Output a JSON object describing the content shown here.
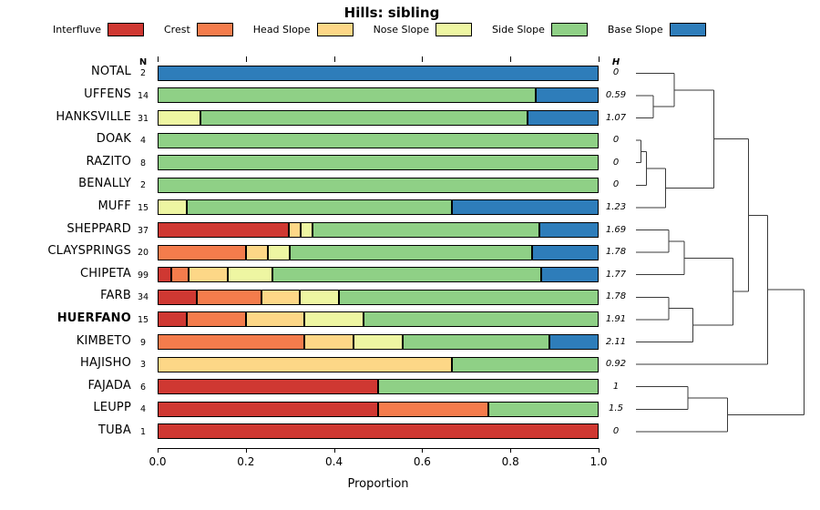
{
  "figure": {
    "n_header": "N",
    "h_header": "H"
  },
  "chart_data": {
    "type": "bar",
    "stacked": true,
    "orientation": "horizontal",
    "title": "Hills: sibling",
    "xlabel": "Proportion",
    "xlim": [
      0,
      1
    ],
    "xticks": [
      "0.0",
      "0.2",
      "0.4",
      "0.6",
      "0.8",
      "1.0"
    ],
    "grid": false,
    "legend_position": "top",
    "categories": [
      "Interfluve",
      "Crest",
      "Head Slope",
      "Nose Slope",
      "Side Slope",
      "Base Slope"
    ],
    "colors": [
      "#cf3832",
      "#f47c4c",
      "#fdd787",
      "#eef6a2",
      "#8fd086",
      "#2e7dba"
    ],
    "rows": [
      {
        "label": "NOTAL",
        "n": 2,
        "h": "0",
        "bold": false,
        "values": [
          0,
          0,
          0,
          0,
          0,
          1
        ]
      },
      {
        "label": "UFFENS",
        "n": 14,
        "h": "0.59",
        "bold": false,
        "values": [
          0,
          0,
          0,
          0,
          0.857,
          0.143
        ]
      },
      {
        "label": "HANKSVILLE",
        "n": 31,
        "h": "1.07",
        "bold": false,
        "values": [
          0,
          0,
          0,
          0.097,
          0.742,
          0.161
        ]
      },
      {
        "label": "DOAK",
        "n": 4,
        "h": "0",
        "bold": false,
        "values": [
          0,
          0,
          0,
          0,
          1,
          0
        ]
      },
      {
        "label": "RAZITO",
        "n": 8,
        "h": "0",
        "bold": false,
        "values": [
          0,
          0,
          0,
          0,
          1,
          0
        ]
      },
      {
        "label": "BENALLY",
        "n": 2,
        "h": "0",
        "bold": false,
        "values": [
          0,
          0,
          0,
          0,
          1,
          0
        ]
      },
      {
        "label": "MUFF",
        "n": 15,
        "h": "1.23",
        "bold": false,
        "values": [
          0,
          0,
          0,
          0.067,
          0.6,
          0.333
        ]
      },
      {
        "label": "SHEPPARD",
        "n": 37,
        "h": "1.69",
        "bold": false,
        "values": [
          0.297,
          0,
          0.027,
          0.027,
          0.514,
          0.135
        ]
      },
      {
        "label": "CLAYSPRINGS",
        "n": 20,
        "h": "1.78",
        "bold": false,
        "values": [
          0,
          0.2,
          0.05,
          0.05,
          0.55,
          0.15
        ]
      },
      {
        "label": "CHIPETA",
        "n": 99,
        "h": "1.77",
        "bold": false,
        "values": [
          0.03,
          0.04,
          0.09,
          0.1,
          0.61,
          0.13
        ]
      },
      {
        "label": "FARB",
        "n": 34,
        "h": "1.78",
        "bold": false,
        "values": [
          0.088,
          0.147,
          0.088,
          0.088,
          0.589,
          0
        ]
      },
      {
        "label": "HUERFANO",
        "n": 15,
        "h": "1.91",
        "bold": true,
        "values": [
          0.067,
          0.133,
          0.133,
          0.133,
          0.534,
          0
        ]
      },
      {
        "label": "KIMBETO",
        "n": 9,
        "h": "2.11",
        "bold": false,
        "values": [
          0,
          0.333,
          0.111,
          0.111,
          0.334,
          0.111
        ]
      },
      {
        "label": "HAJISHO",
        "n": 3,
        "h": "0.92",
        "bold": false,
        "values": [
          0,
          0,
          0.667,
          0,
          0.333,
          0
        ]
      },
      {
        "label": "FAJADA",
        "n": 6,
        "h": "1",
        "bold": false,
        "values": [
          0.5,
          0,
          0,
          0,
          0.5,
          0
        ]
      },
      {
        "label": "LEUPP",
        "n": 4,
        "h": "1.5",
        "bold": false,
        "values": [
          0.5,
          0.25,
          0,
          0,
          0.25,
          0
        ]
      },
      {
        "label": "TUBA",
        "n": 1,
        "h": "0",
        "bold": false,
        "values": [
          1,
          0,
          0,
          0,
          0,
          0
        ]
      }
    ],
    "dendrogram": {
      "leaf_order": [
        "NOTAL",
        "UFFENS",
        "HANKSVILLE",
        "DOAK",
        "RAZITO",
        "BENALLY",
        "MUFF",
        "SHEPPARD",
        "CLAYSPRINGS",
        "CHIPETA",
        "FARB",
        "HUERFANO",
        "KIMBETO",
        "HAJISHO",
        "FAJADA",
        "LEUPP",
        "TUBA"
      ],
      "merges": [
        {
          "id": "m1",
          "a": "UFFENS",
          "b": "HANKSVILLE",
          "x": 0.1
        },
        {
          "id": "m2",
          "a": "NOTAL",
          "b": "m1",
          "x": 0.22
        },
        {
          "id": "m3",
          "a": "DOAK",
          "b": "RAZITO",
          "x": 0.03
        },
        {
          "id": "m4",
          "a": "m3",
          "b": "BENALLY",
          "x": 0.06
        },
        {
          "id": "m5",
          "a": "m4",
          "b": "MUFF",
          "x": 0.17
        },
        {
          "id": "m6",
          "a": "m2",
          "b": "m5",
          "x": 0.45
        },
        {
          "id": "m7",
          "a": "SHEPPARD",
          "b": "CLAYSPRINGS",
          "x": 0.19
        },
        {
          "id": "m8",
          "a": "m7",
          "b": "CHIPETA",
          "x": 0.28
        },
        {
          "id": "m9",
          "a": "FARB",
          "b": "HUERFANO",
          "x": 0.19
        },
        {
          "id": "m10",
          "a": "m9",
          "b": "KIMBETO",
          "x": 0.33
        },
        {
          "id": "m11",
          "a": "m8",
          "b": "m10",
          "x": 0.56
        },
        {
          "id": "m12",
          "a": "m6",
          "b": "m11",
          "x": 0.65
        },
        {
          "id": "m13",
          "a": "m12",
          "b": "HAJISHO",
          "x": 0.76
        },
        {
          "id": "m14",
          "a": "FAJADA",
          "b": "LEUPP",
          "x": 0.3
        },
        {
          "id": "m15",
          "a": "m14",
          "b": "TUBA",
          "x": 0.53
        },
        {
          "id": "m16",
          "a": "m13",
          "b": "m15",
          "x": 0.97
        }
      ]
    }
  }
}
